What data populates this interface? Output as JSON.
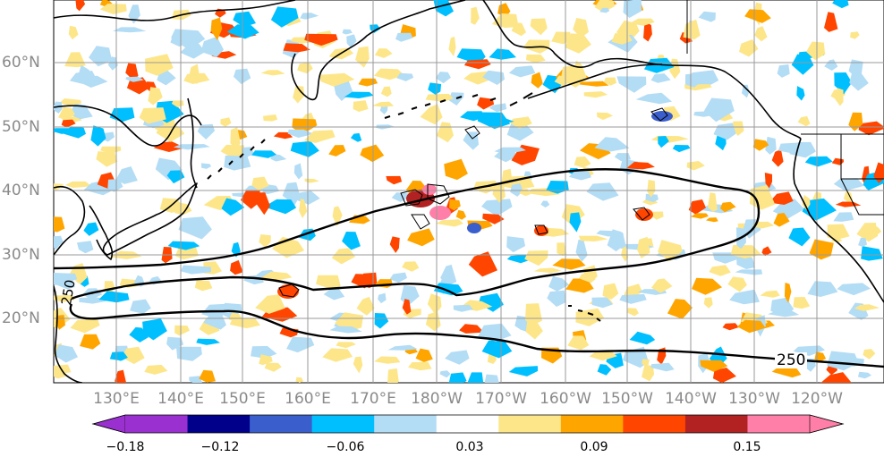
{
  "map": {
    "region": "North Pacific",
    "longitude_labels": [
      "130°E",
      "140°E",
      "150°E",
      "160°E",
      "170°E",
      "180°W",
      "170°W",
      "160°W",
      "150°W",
      "140°W",
      "130°W",
      "120°W"
    ],
    "latitude_labels": [
      "60°N",
      "50°N",
      "40°N",
      "30°N",
      "20°N"
    ],
    "contour_label": "250",
    "contour_label_left": "250"
  },
  "colorbar": {
    "tick_labels": [
      "−0.18",
      "−0.12",
      "−0.06",
      "0.03",
      "0.09",
      "0.15"
    ],
    "colors": [
      "#9b30d0",
      "#00008b",
      "#3a5fcd",
      "#00bfff",
      "#b3dcf5",
      "#ffffff",
      "#fde68a",
      "#ffa500",
      "#ff4500",
      "#b22222",
      "#ff7fa8"
    ]
  },
  "colors": {
    "land_outline": "#000000",
    "grid": "#9a9a9a",
    "tick_text": "#8a8a8a"
  }
}
